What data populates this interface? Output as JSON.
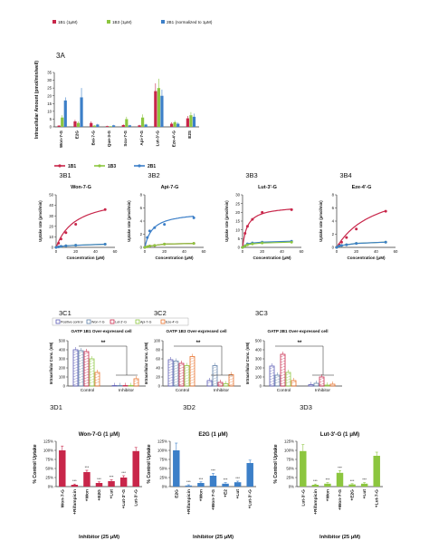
{
  "colors": {
    "s1B1": "#c8264a",
    "s1B3": "#8cc63f",
    "s2B1": "#3c7fc8",
    "inhib_d1": "#c8264a",
    "inhib_d2": "#3c7fc8",
    "inhib_d3": "#8cc63f",
    "c_positive": "#5a5ab4",
    "c_won": "#5f7fa8",
    "c_lut": "#c8264a",
    "c_api": "#8cc63f",
    "c_eze": "#e8702a"
  },
  "chart_data": [
    {
      "panel": "3A",
      "type": "bar",
      "title": "3A",
      "ylabel": "Intracellular Amount (pmol/min/well)",
      "ylim": [
        0,
        35
      ],
      "yticks": [
        "0",
        "5",
        "10",
        "15",
        "20",
        "25",
        "30",
        "35"
      ],
      "legend": [
        "1B1 (1μM)",
        "1B3 (1μM)",
        "2B1 (normalized to 1μM)"
      ],
      "categories": [
        "Won-7-G",
        "E2G",
        "Bai-7-G",
        "Que-3-G",
        "Scu-7-G",
        "Api-7-G",
        "Lut-3'-G",
        "Eze-4'-G",
        "E2S"
      ],
      "series": [
        {
          "name": "1B1 (1μM)",
          "values": [
            0.8,
            3.5,
            2.5,
            0.5,
            1.2,
            1.0,
            23,
            2.0,
            5.5
          ],
          "errors": [
            0.3,
            1.0,
            1.0,
            0.2,
            0.4,
            0.3,
            5,
            1.0,
            1.5
          ]
        },
        {
          "name": "1B3 (1μM)",
          "values": [
            6,
            2.5,
            0.8,
            0.4,
            5,
            6,
            25,
            3.0,
            7.5
          ],
          "errors": [
            1.5,
            1.0,
            0.3,
            0.2,
            1.5,
            2.0,
            6,
            1.0,
            2.0
          ]
        },
        {
          "name": "2B1 (normalized to 1μM)",
          "values": [
            17,
            19,
            1.5,
            1.0,
            1.0,
            1.5,
            20,
            2.0,
            6.5
          ],
          "errors": [
            2.0,
            6.0,
            0.5,
            0.3,
            0.3,
            0.5,
            4,
            0.8,
            2.0
          ]
        }
      ]
    },
    {
      "panel": "3B1",
      "type": "line",
      "title": "Won-7-G",
      "xlabel": "Concentration (μM)",
      "ylabel": "Uptake rate (pmol/min)",
      "xlim": [
        0,
        60
      ],
      "ylim": [
        0,
        50
      ],
      "xticks": [
        "0",
        "20",
        "40",
        "60"
      ],
      "yticks": [
        "0",
        "10",
        "20",
        "30",
        "40",
        "50"
      ],
      "legend": [
        "1B1",
        "1B3",
        "2B1"
      ],
      "x": [
        0,
        2.5,
        5,
        10,
        20,
        50
      ],
      "series": [
        {
          "name": "1B1",
          "values": [
            0,
            4,
            8,
            14,
            22,
            36
          ],
          "vmax": 50,
          "km": 20
        },
        {
          "name": "1B3",
          "values": [
            0,
            0.5,
            1,
            1.5,
            2,
            3
          ]
        },
        {
          "name": "2B1",
          "values": [
            0,
            0.5,
            1,
            1.5,
            2,
            3
          ]
        }
      ]
    },
    {
      "panel": "3B2",
      "type": "line",
      "title": "Api-7-G",
      "xlabel": "Concentration (μM)",
      "ylabel": "Uptake rate (pmol/min)",
      "xlim": [
        0,
        60
      ],
      "ylim": [
        0,
        8
      ],
      "xticks": [
        "0",
        "20",
        "40",
        "60"
      ],
      "yticks": [
        "0",
        "2",
        "4",
        "6",
        "8"
      ],
      "x": [
        0,
        2.5,
        5,
        10,
        20,
        50
      ],
      "series": [
        {
          "name": "2B1",
          "values": [
            0,
            1.5,
            2.5,
            3.0,
            3.5,
            4.5
          ],
          "vmax": 5.5,
          "km": 8
        },
        {
          "name": "1B1",
          "values": [
            0,
            0.1,
            0.2,
            0.3,
            0.5,
            0.6
          ]
        },
        {
          "name": "1B3",
          "values": [
            0,
            0.1,
            0.2,
            0.3,
            0.5,
            0.6
          ]
        }
      ]
    },
    {
      "panel": "3B3",
      "type": "line",
      "title": "Lut-3'-G",
      "xlabel": "Concentration (μM)",
      "ylabel": "Uptake rate (pmol/min)",
      "xlim": [
        0,
        60
      ],
      "ylim": [
        0,
        30
      ],
      "xticks": [
        "0",
        "20",
        "40",
        "60"
      ],
      "yticks": [
        "0",
        "5",
        "10",
        "15",
        "20",
        "25",
        "30"
      ],
      "x": [
        0,
        2.5,
        5,
        10,
        20,
        50
      ],
      "series": [
        {
          "name": "1B1",
          "values": [
            0,
            8,
            12,
            16,
            20,
            21.5
          ],
          "vmax": 24,
          "km": 5
        },
        {
          "name": "2B1",
          "values": [
            0,
            1,
            2,
            2.5,
            3,
            3.5
          ]
        },
        {
          "name": "1B3",
          "values": [
            0,
            0.8,
            1.5,
            2,
            2.5,
            3
          ]
        }
      ]
    },
    {
      "panel": "3B4",
      "type": "line",
      "title": "Eze-4'-G",
      "xlabel": "Concentration (μM)",
      "ylabel": "Uptake rate (pmol/min)",
      "xlim": [
        0,
        60
      ],
      "ylim": [
        0,
        8
      ],
      "xticks": [
        "0",
        "20",
        "40",
        "60"
      ],
      "yticks": [
        "0",
        "2",
        "4",
        "6",
        "8"
      ],
      "x": [
        0,
        2.5,
        5,
        10,
        20,
        50
      ],
      "series": [
        {
          "name": "1B1",
          "values": [
            0,
            0.4,
            0.8,
            1.5,
            2.8,
            5.5
          ],
          "vmax": 10,
          "km": 40
        },
        {
          "name": "1B3",
          "values": [
            0,
            0.2,
            0.3,
            0.4,
            0.6,
            0.8
          ]
        },
        {
          "name": "2B1",
          "values": [
            0,
            0.2,
            0.3,
            0.4,
            0.6,
            0.8
          ]
        }
      ]
    },
    {
      "panel": "3C1",
      "type": "bar",
      "title": "OATP 1B1 Over-expressed cell",
      "ylabel": "Intracellular Conc. (nM)",
      "ylim": [
        0,
        500
      ],
      "yticks": [
        "0",
        "100",
        "200",
        "300",
        "400",
        "500"
      ],
      "legend": [
        "Positive control",
        "Won-7-G",
        "Lut-3'-G",
        "Api-7-G",
        "Eze-4'-G"
      ],
      "categories": [
        "Control",
        "Inhibitor"
      ],
      "series": [
        {
          "name": "Positive control",
          "values": [
            400,
            5
          ]
        },
        {
          "name": "Won-7-G",
          "values": [
            390,
            5
          ]
        },
        {
          "name": "Lut-3'-G",
          "values": [
            380,
            5
          ]
        },
        {
          "name": "Api-7-G",
          "values": [
            300,
            5
          ]
        },
        {
          "name": "Eze-4'-G",
          "values": [
            150,
            80
          ]
        }
      ],
      "significance": "**"
    },
    {
      "panel": "3C2",
      "type": "bar",
      "title": "OATP 1B3 Over-expressed cell",
      "ylabel": "Intracellular Conc. (nM)",
      "ylim": [
        0,
        100
      ],
      "yticks": [
        "0",
        "20",
        "40",
        "60",
        "80",
        "100"
      ],
      "categories": [
        "Control",
        "Inhibitor"
      ],
      "series": [
        {
          "name": "Positive control",
          "values": [
            58,
            12
          ]
        },
        {
          "name": "Won-7-G",
          "values": [
            55,
            45
          ]
        },
        {
          "name": "Lut-3'-G",
          "values": [
            50,
            8
          ]
        },
        {
          "name": "Api-7-G",
          "values": [
            45,
            5
          ]
        },
        {
          "name": "Eze-4'-G",
          "values": [
            65,
            25
          ]
        }
      ],
      "significance": "**"
    },
    {
      "panel": "3C3",
      "type": "bar",
      "title": "OATP 2B1 Over-expressed cell",
      "ylabel": "Intracellular Conc. (nM)",
      "ylim": [
        0,
        500
      ],
      "yticks": [
        "0",
        "100",
        "200",
        "300",
        "400",
        "500"
      ],
      "categories": [
        "Control",
        "Inhibitor"
      ],
      "series": [
        {
          "name": "Positive control",
          "values": [
            220,
            15
          ]
        },
        {
          "name": "Won-7-G",
          "values": [
            120,
            30
          ]
        },
        {
          "name": "Lut-3'-G",
          "values": [
            350,
            100
          ]
        },
        {
          "name": "Api-7-G",
          "values": [
            150,
            10
          ]
        },
        {
          "name": "Eze-4'-G",
          "values": [
            60,
            20
          ]
        }
      ],
      "significance": "**"
    },
    {
      "panel": "3D1",
      "type": "bar",
      "title": "Won-7-G (1 μM)",
      "xlabel": "Inhibitor (25 μM)",
      "ylabel": "% Control Uptake",
      "ylim": [
        0,
        125
      ],
      "yticks": [
        "0%",
        "25%",
        "50%",
        "75%",
        "100%",
        "125%"
      ],
      "categories": [
        "Won-7-G",
        "+Rifampicin",
        "+Won",
        "+E2G",
        "+Lut",
        "+Lut-3'-G",
        "Lut-3'-G"
      ],
      "values": [
        100,
        5,
        40,
        10,
        15,
        25,
        98
      ],
      "errors": [
        12,
        2,
        5,
        3,
        4,
        5,
        10
      ],
      "stars": [
        "",
        "***",
        "***",
        "***",
        "***",
        "***",
        ""
      ]
    },
    {
      "panel": "3D2",
      "type": "bar",
      "title": "E2G (1 μM)",
      "xlabel": "Inhibitor (25 μM)",
      "ylabel": "% Control Uptake",
      "ylim": [
        0,
        125
      ],
      "yticks": [
        "0%",
        "25%",
        "50%",
        "75%",
        "100%",
        "125%"
      ],
      "categories": [
        "E2G",
        "+Rifampicin",
        "+Won",
        "+Won-7-G",
        "+E2",
        "+Lut",
        "+Lut-3'-G"
      ],
      "values": [
        100,
        3,
        10,
        30,
        8,
        12,
        65
      ],
      "errors": [
        20,
        2,
        3,
        6,
        3,
        3,
        8
      ],
      "stars": [
        "",
        "***",
        "***",
        "***",
        "***",
        "***",
        ""
      ]
    },
    {
      "panel": "3D3",
      "type": "bar",
      "title": "Lut-3'-G (1 μM)",
      "xlabel": "Inhibitor (25 μM)",
      "ylabel": "% Control Uptake",
      "ylim": [
        0,
        125
      ],
      "yticks": [
        "0%",
        "25%",
        "50%",
        "75%",
        "100%",
        "125%"
      ],
      "categories": [
        "Lut-3'-G",
        "+Rifampicin",
        "+Won",
        "+Won-7-G",
        "+E2G",
        "+Lut",
        "+Lut-7-G"
      ],
      "values": [
        98,
        5,
        8,
        38,
        6,
        8,
        85
      ],
      "errors": [
        18,
        2,
        3,
        6,
        2,
        3,
        10
      ],
      "stars": [
        "",
        "***",
        "***",
        "***",
        "***",
        "***",
        ""
      ]
    }
  ],
  "labels": {
    "3B1": "3B1",
    "3B2": "3B2",
    "3B3": "3B3",
    "3B4": "3B4",
    "3C1": "3C1",
    "3C2": "3C2",
    "3C3": "3C3",
    "3D1": "3D1",
    "3D2": "3D2",
    "3D3": "3D3"
  }
}
